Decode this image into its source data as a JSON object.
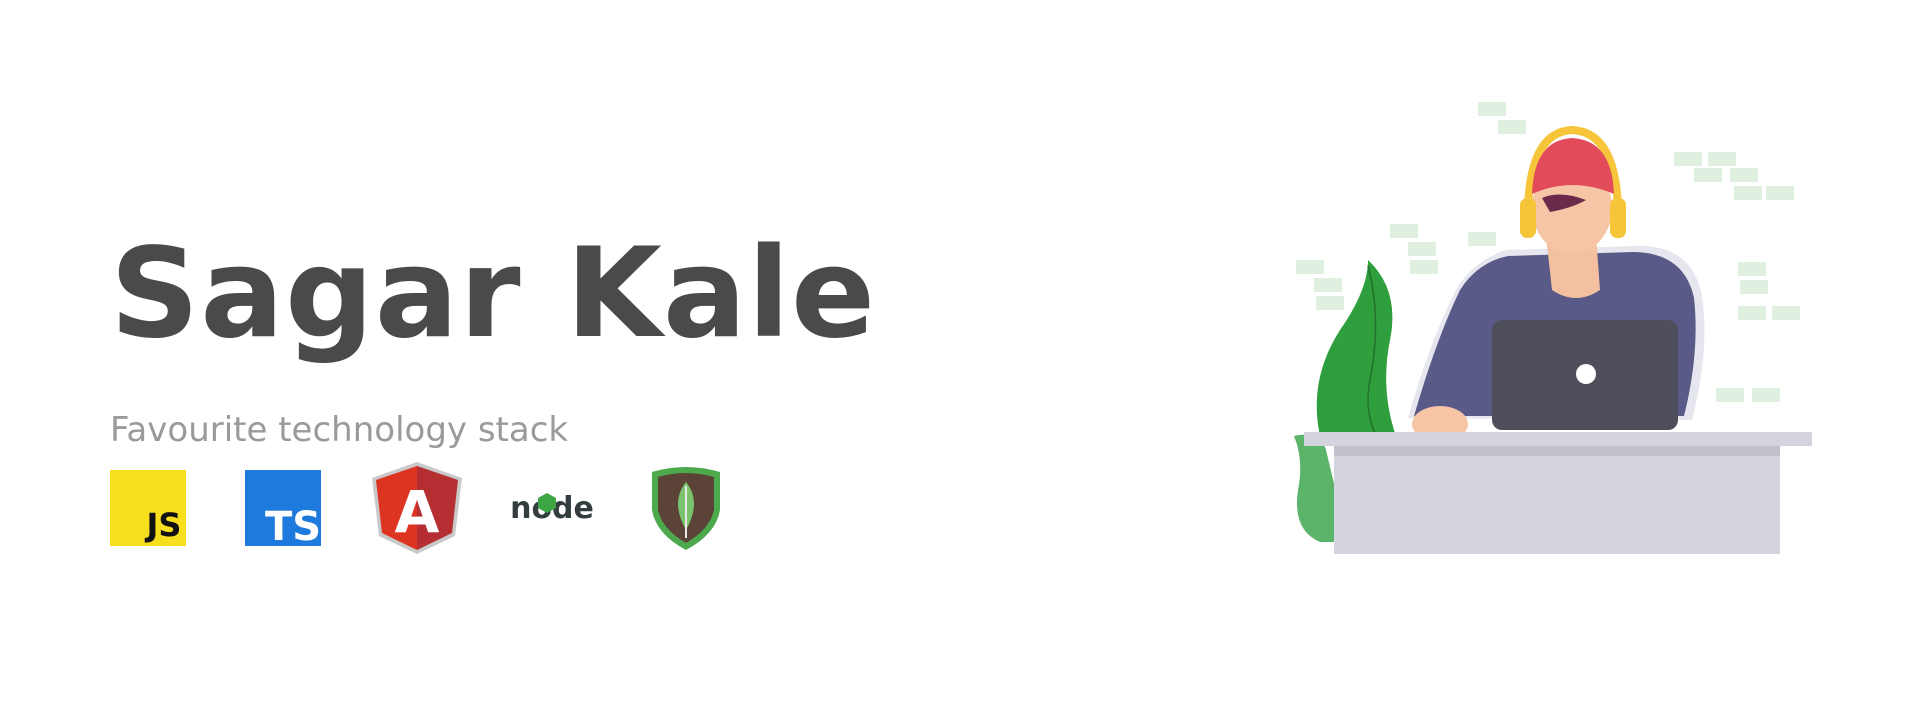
{
  "header": {
    "name": "Sagar Kale",
    "subtitle": "Favourite technology stack"
  },
  "tech_stack": [
    {
      "name": "JavaScript",
      "icon": "javascript-icon",
      "label": "JS",
      "color": "#F7DF1E"
    },
    {
      "name": "TypeScript",
      "icon": "typescript-icon",
      "label": "TS",
      "color": "#1E7ADC"
    },
    {
      "name": "Angular",
      "icon": "angular-icon",
      "label": "A",
      "color": "#DD3321"
    },
    {
      "name": "Node.js",
      "icon": "nodejs-icon",
      "label": "node",
      "color": "#3DA544"
    },
    {
      "name": "MongoDB",
      "icon": "mongodb-icon",
      "label": "",
      "color": "#4DAA4C"
    }
  ],
  "illustration": {
    "subject": "person-with-headphones-at-laptop",
    "colors": {
      "shirt": "#5a5a88",
      "cap": "#e14b5a",
      "headphones": "#f7c53a",
      "laptop": "#4f4f5c",
      "desk": "#d4d4de",
      "plant": "#2f9e3c",
      "cubes": "#dff0e1"
    }
  }
}
